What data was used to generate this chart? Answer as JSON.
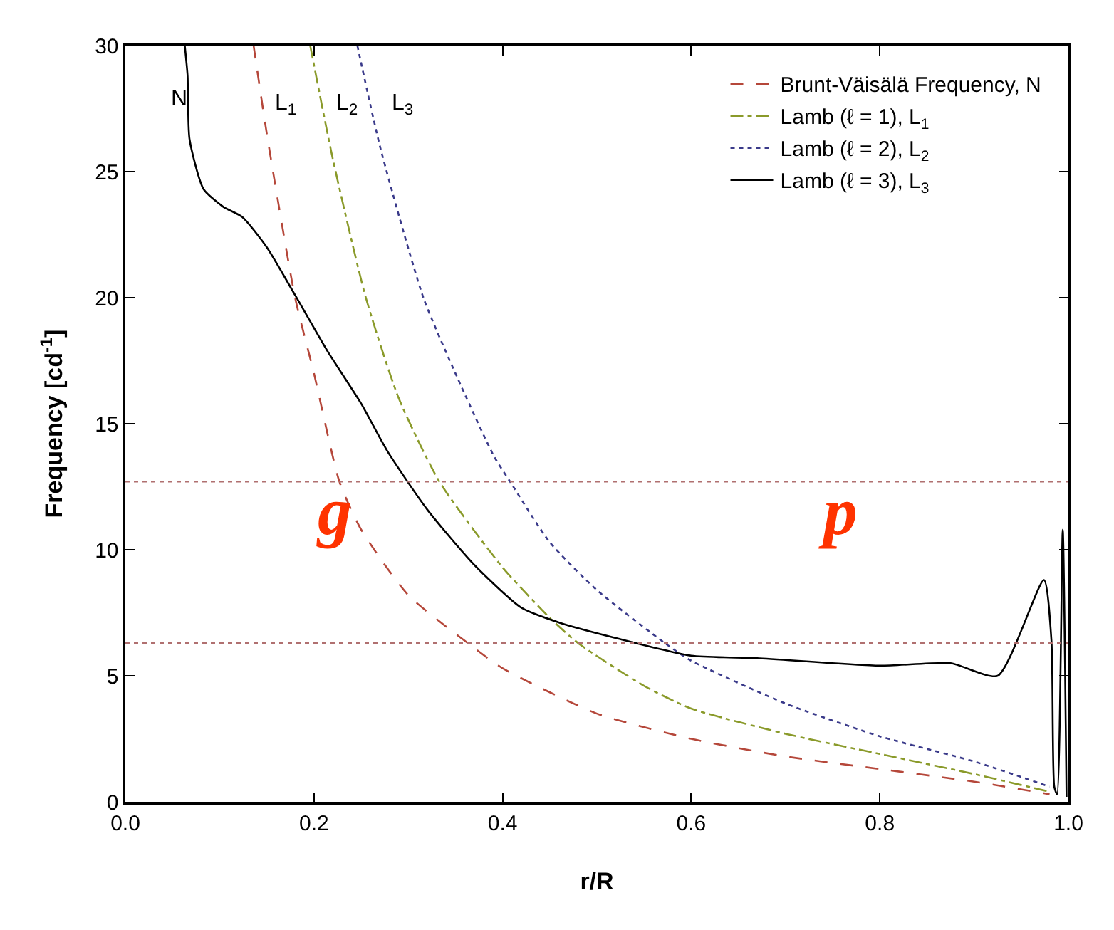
{
  "chart_data": {
    "type": "line",
    "xlabel": "r/R",
    "ylabel": "Frequency [cd$^{-1}$]",
    "xlim": [
      0,
      1
    ],
    "ylim": [
      0,
      30
    ],
    "xticks": [
      {
        "value": 0,
        "label": "0.0"
      },
      {
        "value": 0.2,
        "label": "0.2"
      },
      {
        "value": 0.4,
        "label": "0.4"
      },
      {
        "value": 0.6,
        "label": "0.6"
      },
      {
        "value": 0.8,
        "label": "0.8"
      },
      {
        "value": 1,
        "label": "1.0"
      }
    ],
    "yticks": [
      0,
      5,
      10,
      15,
      20,
      25,
      30
    ],
    "grid": false,
    "legend": "top right",
    "marker": "none",
    "series": [
      {
        "name": "Brunt-Väisälä Frequency, N",
        "color": "#b5473a",
        "line_style": "dashed",
        "x": [
          0.136,
          0.15,
          0.18,
          0.2,
          0.227,
          0.25,
          0.3,
          0.363,
          0.4,
          0.5,
          0.6,
          0.7,
          0.8,
          0.9,
          0.98
        ],
        "values": [
          30,
          26.5,
          20,
          17,
          12.7,
          10.8,
          8.2,
          6.3,
          5.3,
          3.5,
          2.5,
          1.8,
          1.3,
          0.8,
          0.3
        ]
      },
      {
        "name": "Lamb (ℓ = 1), L$_{1}$",
        "color": "#8a9a2a",
        "line_style": "dashdot",
        "x": [
          0.196,
          0.22,
          0.255,
          0.29,
          0.333,
          0.4,
          0.45,
          0.48,
          0.55,
          0.6,
          0.7,
          0.8,
          0.9,
          0.98
        ],
        "values": [
          30,
          25.5,
          20,
          16,
          12.7,
          9.3,
          7.3,
          6.3,
          4.6,
          3.7,
          2.7,
          1.9,
          1.1,
          0.4
        ]
      },
      {
        "name": "Lamb (ℓ = 2), L$_{2}$",
        "color": "#3a3a8a",
        "line_style": "dotted",
        "x": [
          0.246,
          0.27,
          0.316,
          0.35,
          0.391,
          0.408,
          0.45,
          0.5,
          0.572,
          0.6,
          0.7,
          0.8,
          0.9,
          0.98
        ],
        "values": [
          30,
          26,
          20,
          17,
          13.7,
          12.7,
          10.3,
          8.4,
          6.3,
          5.6,
          3.9,
          2.6,
          1.6,
          0.6
        ]
      },
      {
        "name": "Lamb (ℓ = 3), L$_{3}$",
        "color": "#000000",
        "line_style": "solid",
        "x": [
          0.063,
          0.066,
          0.068,
          0.083,
          0.104,
          0.124,
          0.15,
          0.18,
          0.214,
          0.25,
          0.278,
          0.32,
          0.37,
          0.42,
          0.461,
          0.52,
          0.6,
          0.67,
          0.8,
          0.875,
          0.925,
          0.974,
          0.982,
          0.985,
          0.988,
          0.994,
          0.998
        ],
        "values": [
          30,
          28.8,
          26.3,
          24.3,
          23.6,
          23.2,
          22,
          20.1,
          17.9,
          15.8,
          13.9,
          11.6,
          9.4,
          7.7,
          7.1,
          6.5,
          5.8,
          5.7,
          5.4,
          5.5,
          5,
          8.8,
          6.4,
          0.6,
          0.3,
          10.8,
          0.2
        ]
      }
    ],
    "ref_lines": [
      {
        "axis": "y",
        "value": 12.7,
        "color": "#b07070",
        "line_style": "dotted"
      },
      {
        "axis": "y",
        "value": 6.3,
        "color": "#b07070",
        "line_style": "dotted"
      }
    ],
    "annotations": [
      "g",
      "p",
      "N",
      "L$_{1}$",
      "L$_{2}$",
      "L$_{3}$"
    ]
  }
}
